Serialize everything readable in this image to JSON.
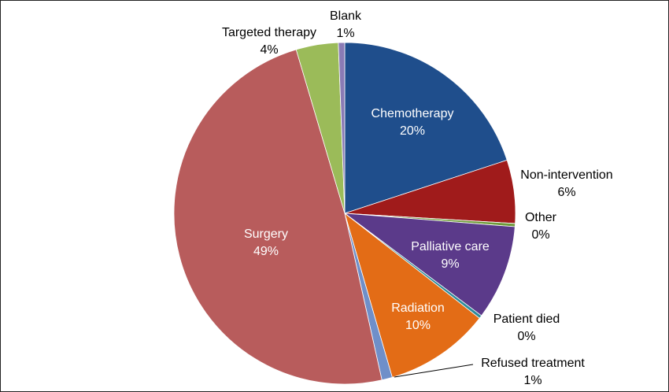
{
  "chart_data": {
    "type": "pie",
    "slices": [
      {
        "label": "Chemotherapy",
        "value": 20,
        "value_label": "20%",
        "color": "#1f4e8c",
        "label_inside": true
      },
      {
        "label": "Non-intervention",
        "value": 6,
        "value_label": "6%",
        "color": "#a01b1b",
        "label_inside": false
      },
      {
        "label": "Other",
        "value": 0.3,
        "value_label": "0%",
        "color": "#6f9b3a",
        "label_inside": false
      },
      {
        "label": "Palliative care",
        "value": 9,
        "value_label": "9%",
        "color": "#5b3a8a",
        "label_inside": true
      },
      {
        "label": "Patient died",
        "value": 0.3,
        "value_label": "0%",
        "color": "#2e8b9a",
        "label_inside": false
      },
      {
        "label": "Radiation",
        "value": 10,
        "value_label": "10%",
        "color": "#e36c16",
        "label_inside": true
      },
      {
        "label": "Refused treatment",
        "value": 1,
        "value_label": "1%",
        "color": "#6f8fc9",
        "label_inside": false
      },
      {
        "label": "Surgery",
        "value": 49,
        "value_label": "49%",
        "color": "#b85c5c",
        "label_inside": true
      },
      {
        "label": "Targeted therapy",
        "value": 4,
        "value_label": "4%",
        "color": "#9bbb59",
        "label_inside": false
      },
      {
        "label": "Blank",
        "value": 0.6,
        "value_label": "1%",
        "color": "#8a7bb5",
        "label_inside": false
      }
    ]
  }
}
